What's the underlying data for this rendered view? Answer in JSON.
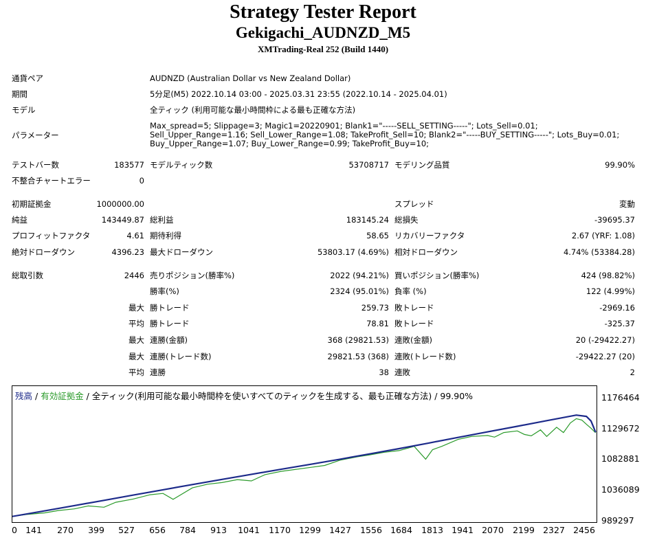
{
  "header": {
    "title": "Strategy Tester Report",
    "subtitle": "Gekigachi_AUDNZD_M5",
    "server": "XMTrading-Real 252 (Build 1440)"
  },
  "settings": {
    "symbol_label": "通貨ペア",
    "symbol_value": "AUDNZD (Australian Dollar vs New Zealand Dollar)",
    "period_label": "期間",
    "period_value": "5分足(M5) 2022.10.14 03:00 - 2025.03.31 23:55 (2022.10.14 - 2025.04.01)",
    "model_label": "モデル",
    "model_value": "全ティック (利用可能な最小時間枠による最も正確な方法)",
    "params_label": "パラメーター",
    "params_value": "Max_spread=5; Slippage=3; Magic1=20220901; Blank1=\"-----SELL_SETTING-----\"; Lots_Sell=0.01; Sell_Upper_Range=1.16; Sell_Lower_Range=1.08; TakeProfit_Sell=10; Blank2=\"-----BUY_SETTING-----\"; Lots_Buy=0.01; Buy_Upper_Range=1.07; Buy_Lower_Range=0.99; TakeProfit_Buy=10;"
  },
  "stats": {
    "bars_label": "テストバー数",
    "bars_value": "183577",
    "ticks_label": "モデルティック数",
    "ticks_value": "53708717",
    "quality_label": "モデリング品質",
    "quality_value": "99.90%",
    "mismatch_label": "不整合チャートエラー",
    "mismatch_value": "0",
    "deposit_label": "初期証拠金",
    "deposit_value": "1000000.00",
    "spread_label": "スプレッド",
    "spread_value": "変動",
    "net_label": "純益",
    "net_value": "143449.87",
    "gross_profit_label": "総利益",
    "gross_profit_value": "183145.24",
    "gross_loss_label": "総損失",
    "gross_loss_value": "-39695.37",
    "pf_label": "プロフィットファクタ",
    "pf_value": "4.61",
    "expected_label": "期待利得",
    "expected_value": "58.65",
    "recovery_label": "リカバリーファクタ",
    "recovery_value": "2.67 (YRF: 1.08)",
    "abs_dd_label": "絶対ドローダウン",
    "abs_dd_value": "4396.23",
    "max_dd_label": "最大ドローダウン",
    "max_dd_value": "53803.17 (4.69%)",
    "rel_dd_label": "相対ドローダウン",
    "rel_dd_value": "4.74% (53384.28)"
  },
  "trades": {
    "total_label": "総取引数",
    "total_value": "2446",
    "short_label": "売りポジション(勝率%)",
    "short_value": "2022 (94.21%)",
    "long_label": "買いポジション(勝率%)",
    "long_value": "424 (98.82%)",
    "winrate_label": "勝率(%)",
    "winrate_value": "2324 (95.01%)",
    "lossrate_label": "負率 (%)",
    "lossrate_value": "122 (4.99%)",
    "max_label": "最大",
    "avg_label": "平均",
    "win_trade_label": "勝トレード",
    "loss_trade_label": "敗トレード",
    "largest_win_value": "259.73",
    "largest_loss_value": "-2969.16",
    "avg_win_value": "78.81",
    "avg_loss_value": "-325.37",
    "consec_wins_money_label": "連勝(金額)",
    "consec_wins_money_value": "368 (29821.53)",
    "consec_losses_money_label": "連敗(金額)",
    "consec_losses_money_value": "20 (-29422.27)",
    "consec_wins_count_label": "連勝(トレード数)",
    "consec_wins_count_value": "29821.53 (368)",
    "consec_losses_count_label": "連敗(トレード数)",
    "consec_losses_count_value": "-29422.27 (20)",
    "avg_consec_win_label": "連勝",
    "avg_consec_win_value": "38",
    "avg_consec_loss_label": "連敗",
    "avg_consec_loss_value": "2"
  },
  "chart_data": {
    "type": "line",
    "legend": {
      "balance": "残高",
      "sep1": " / ",
      "equity": "有効証拠金",
      "rest": " / 全ティック(利用可能な最小時間枠を使いすべてのティックを生成する、最も正確な方法) / 99.90%"
    },
    "colors": {
      "balance": "#1c2a8a",
      "equity": "#2a9a2a"
    },
    "xlim": [
      0,
      2550
    ],
    "ylim": [
      989297,
      1198000
    ],
    "x_ticks": [
      "0",
      "141",
      "270",
      "399",
      "527",
      "656",
      "784",
      "913",
      "1041",
      "1170",
      "1299",
      "1427",
      "1556",
      "1684",
      "1813",
      "1941",
      "2070",
      "2199",
      "2327",
      "2456"
    ],
    "y_ticks": [
      "1176464",
      "1129672",
      "1082881",
      "1036089",
      "989297"
    ],
    "series": [
      {
        "name": "残高",
        "x": [
          0,
          141,
          270,
          399,
          527,
          656,
          784,
          913,
          1041,
          1170,
          1299,
          1427,
          1556,
          1684,
          1813,
          1941,
          2070,
          2199,
          2327,
          2456,
          2500,
          2520,
          2540
        ],
        "y": [
          1000000,
          1008500,
          1016500,
          1024500,
          1032500,
          1040500,
          1048500,
          1056300,
          1064000,
          1071600,
          1079200,
          1087000,
          1095000,
          1103000,
          1111500,
          1120000,
          1128500,
          1137000,
          1145500,
          1154000,
          1152000,
          1145000,
          1128000
        ]
      },
      {
        "name": "有効証拠金",
        "x": [
          0,
          60,
          141,
          200,
          270,
          330,
          399,
          450,
          527,
          600,
          656,
          700,
          784,
          850,
          913,
          980,
          1041,
          1100,
          1170,
          1299,
          1360,
          1427,
          1500,
          1556,
          1620,
          1684,
          1750,
          1800,
          1830,
          1870,
          1941,
          2000,
          2070,
          2100,
          2140,
          2199,
          2230,
          2260,
          2300,
          2327,
          2370,
          2400,
          2430,
          2456,
          2480,
          2500,
          2520,
          2540
        ],
        "y": [
          1000000,
          1003000,
          1005500,
          1009000,
          1011500,
          1016000,
          1014000,
          1021500,
          1026500,
          1033000,
          1035000,
          1026000,
          1043500,
          1049000,
          1051500,
          1056000,
          1054000,
          1063500,
          1068500,
          1074500,
          1077500,
          1085500,
          1090500,
          1093500,
          1097500,
          1100000,
          1106500,
          1087000,
          1101500,
          1106500,
          1117000,
          1121500,
          1123000,
          1120500,
          1127500,
          1130000,
          1124500,
          1122500,
          1131500,
          1121500,
          1135500,
          1127500,
          1142000,
          1148500,
          1146500,
          1140000,
          1134000,
          1127000
        ]
      }
    ]
  }
}
